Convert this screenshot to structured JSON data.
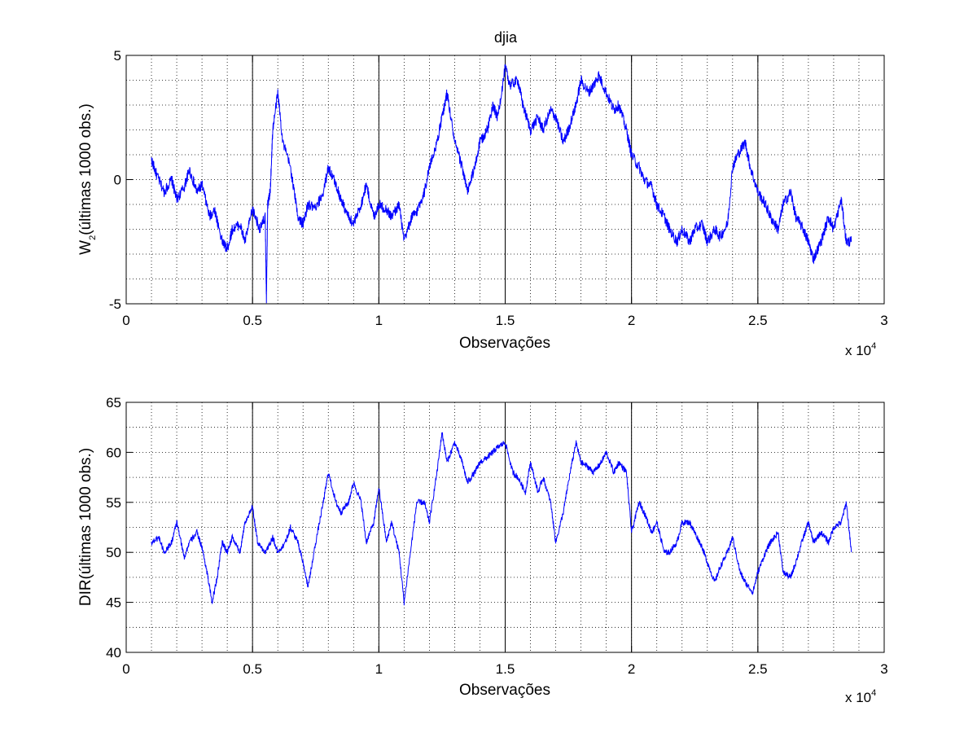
{
  "figure": {
    "line_color": "#0000ff",
    "grid": "dotted",
    "background": "#ffffff"
  },
  "chart_data": [
    {
      "type": "line",
      "title": "djia",
      "xlabel": "Observações",
      "ylabel_main": "W",
      "ylabel_sub": "2",
      "ylabel_rest": "(últimas 1000 obs.)",
      "x_multiplier_base": "x 10",
      "x_multiplier_exp": "4",
      "xlim": [
        0,
        3
      ],
      "ylim": [
        -5,
        5
      ],
      "x_ticks": [
        "0",
        "0.5",
        "1",
        "1.5",
        "2",
        "2.5",
        "3"
      ],
      "y_ticks": [
        "-5",
        "0",
        "5"
      ],
      "x_tick_values": [
        0,
        0.5,
        1,
        1.5,
        2,
        2.5,
        3
      ],
      "y_tick_values": [
        -5,
        0,
        5
      ],
      "vlines": [
        0.5,
        1,
        1.5,
        2,
        2.5
      ],
      "series": [
        {
          "x": [
            0.1,
            0.12,
            0.15,
            0.18,
            0.2,
            0.23,
            0.25,
            0.28,
            0.3,
            0.33,
            0.35,
            0.38,
            0.4,
            0.42,
            0.45,
            0.47,
            0.5,
            0.53,
            0.55,
            0.555,
            0.56,
            0.57,
            0.58,
            0.6,
            0.62,
            0.65,
            0.68,
            0.7,
            0.72,
            0.75,
            0.78,
            0.8,
            0.83,
            0.85,
            0.88,
            0.9,
            0.93,
            0.95,
            0.98,
            1.0,
            1.03,
            1.05,
            1.08,
            1.1,
            1.13,
            1.15,
            1.18,
            1.2,
            1.23,
            1.25,
            1.27,
            1.3,
            1.33,
            1.35,
            1.38,
            1.4,
            1.43,
            1.45,
            1.47,
            1.5,
            1.52,
            1.55,
            1.57,
            1.6,
            1.63,
            1.65,
            1.68,
            1.7,
            1.73,
            1.75,
            1.78,
            1.8,
            1.83,
            1.85,
            1.87,
            1.9,
            1.93,
            1.95,
            1.98,
            2.0,
            2.03,
            2.05,
            2.08,
            2.1,
            2.13,
            2.15,
            2.18,
            2.2,
            2.23,
            2.25,
            2.28,
            2.3,
            2.33,
            2.35,
            2.38,
            2.4,
            2.42,
            2.45,
            2.47,
            2.5,
            2.53,
            2.55,
            2.58,
            2.6,
            2.63,
            2.65,
            2.68,
            2.7,
            2.72,
            2.75,
            2.78,
            2.8,
            2.83,
            2.85,
            2.87
          ],
          "y": [
            0.8,
            0.2,
            -0.5,
            0.0,
            -0.8,
            -0.3,
            0.4,
            -0.5,
            -0.2,
            -1.5,
            -1.2,
            -2.5,
            -2.8,
            -2.0,
            -1.8,
            -2.5,
            -1.2,
            -2.0,
            -1.5,
            -4.8,
            -1.0,
            -0.5,
            2.0,
            3.5,
            1.5,
            0.5,
            -1.5,
            -1.8,
            -1.0,
            -1.2,
            -0.5,
            0.5,
            -0.2,
            -0.8,
            -1.5,
            -1.8,
            -1.0,
            -0.2,
            -1.5,
            -1.0,
            -1.2,
            -1.5,
            -1.0,
            -2.5,
            -1.5,
            -1.3,
            -0.5,
            0.5,
            1.5,
            2.5,
            3.5,
            1.5,
            0.5,
            -0.5,
            0.5,
            1.5,
            2.0,
            3.0,
            2.5,
            4.5,
            3.8,
            4.0,
            3.0,
            2.0,
            2.5,
            2.0,
            2.8,
            2.5,
            1.5,
            2.0,
            3.0,
            4.0,
            3.5,
            3.8,
            4.2,
            3.5,
            2.8,
            3.0,
            2.0,
            1.0,
            0.5,
            0.0,
            -0.3,
            -1.0,
            -1.5,
            -2.0,
            -2.5,
            -2.0,
            -2.5,
            -2.0,
            -1.8,
            -2.5,
            -2.0,
            -2.3,
            -1.8,
            0.5,
            1.0,
            1.5,
            0.5,
            -0.5,
            -1.0,
            -1.5,
            -2.0,
            -1.0,
            -0.5,
            -1.5,
            -2.0,
            -2.5,
            -3.2,
            -2.5,
            -1.5,
            -2.0,
            -0.8,
            -2.5,
            -2.5
          ]
        }
      ]
    },
    {
      "type": "line",
      "title": "",
      "xlabel": "Observações",
      "ylabel_main": "DIR(últimas 1000 obs.)",
      "ylabel_sub": "",
      "ylabel_rest": "",
      "x_multiplier_base": "x 10",
      "x_multiplier_exp": "4",
      "xlim": [
        0,
        3
      ],
      "ylim": [
        40,
        65
      ],
      "x_ticks": [
        "0",
        "0.5",
        "1",
        "1.5",
        "2",
        "2.5",
        "3"
      ],
      "y_ticks": [
        "40",
        "45",
        "50",
        "55",
        "60",
        "65"
      ],
      "x_tick_values": [
        0,
        0.5,
        1,
        1.5,
        2,
        2.5,
        3
      ],
      "y_tick_values": [
        40,
        45,
        50,
        55,
        60,
        65
      ],
      "vlines": [
        0.5,
        1,
        1.5,
        2,
        2.5
      ],
      "series": [
        {
          "x": [
            0.1,
            0.13,
            0.15,
            0.18,
            0.2,
            0.23,
            0.25,
            0.28,
            0.3,
            0.32,
            0.34,
            0.36,
            0.38,
            0.4,
            0.42,
            0.45,
            0.47,
            0.5,
            0.52,
            0.55,
            0.58,
            0.6,
            0.63,
            0.65,
            0.68,
            0.7,
            0.72,
            0.75,
            0.78,
            0.8,
            0.83,
            0.85,
            0.88,
            0.9,
            0.93,
            0.95,
            0.98,
            1.0,
            1.03,
            1.05,
            1.08,
            1.1,
            1.13,
            1.15,
            1.18,
            1.2,
            1.23,
            1.25,
            1.27,
            1.3,
            1.33,
            1.35,
            1.38,
            1.4,
            1.43,
            1.45,
            1.47,
            1.5,
            1.53,
            1.55,
            1.58,
            1.6,
            1.63,
            1.65,
            1.68,
            1.7,
            1.73,
            1.75,
            1.78,
            1.8,
            1.83,
            1.85,
            1.88,
            1.9,
            1.93,
            1.95,
            1.98,
            2.0,
            2.03,
            2.05,
            2.08,
            2.1,
            2.13,
            2.15,
            2.18,
            2.2,
            2.23,
            2.25,
            2.28,
            2.3,
            2.33,
            2.35,
            2.38,
            2.4,
            2.43,
            2.45,
            2.48,
            2.5,
            2.53,
            2.55,
            2.58,
            2.6,
            2.63,
            2.65,
            2.68,
            2.7,
            2.72,
            2.75,
            2.78,
            2.8,
            2.83,
            2.85,
            2.87
          ],
          "y": [
            51,
            51.5,
            50,
            51,
            53,
            49.5,
            51,
            52,
            50.5,
            48,
            45,
            47.5,
            51,
            50,
            51.5,
            50,
            53,
            54.5,
            51,
            50,
            51.5,
            50,
            51,
            52.5,
            51,
            49,
            46.5,
            51,
            55,
            58,
            55,
            54,
            55,
            57,
            55,
            51,
            53,
            56.5,
            51,
            53,
            50,
            45,
            51,
            55,
            55,
            53,
            58,
            62,
            59,
            61,
            59,
            57,
            58,
            59,
            59.5,
            60,
            60.5,
            61,
            58,
            57.5,
            56,
            59,
            56,
            57.5,
            55,
            51,
            54,
            57,
            61,
            59,
            58.5,
            58,
            59,
            60,
            58,
            59,
            58,
            52,
            55,
            54,
            52,
            53,
            50,
            50,
            51,
            53,
            53,
            52,
            50.5,
            49,
            47,
            48.5,
            50,
            51.5,
            48,
            47,
            46,
            48,
            50,
            51,
            52,
            48,
            47.5,
            49,
            51.5,
            53,
            51,
            52,
            51,
            52.5,
            53,
            55,
            50
          ]
        }
      ]
    }
  ]
}
